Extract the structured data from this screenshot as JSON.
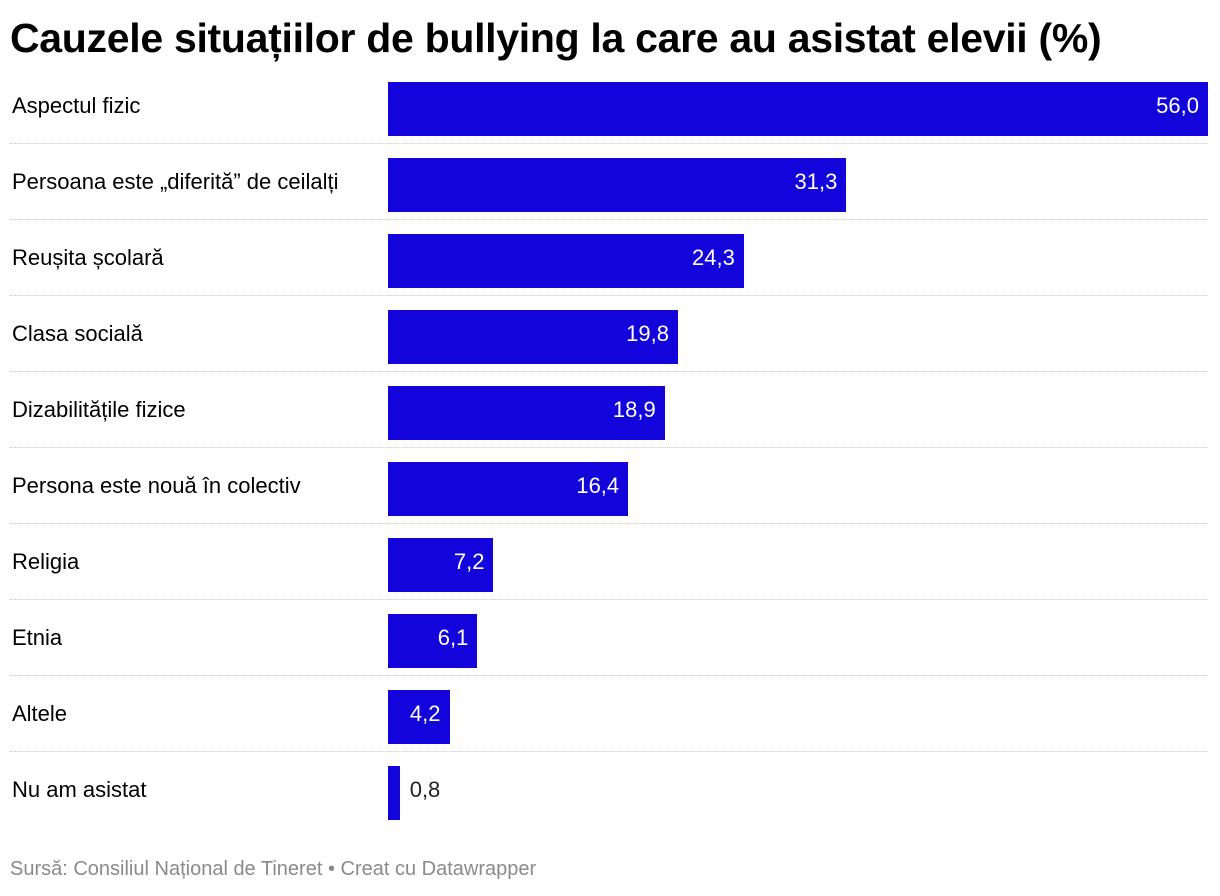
{
  "chart_data": {
    "type": "bar",
    "orientation": "horizontal",
    "title": "Cauzele situațiilor de bullying la care au asistat elevii (%)",
    "categories": [
      "Aspectul fizic",
      "Persoana este „diferită” de ceilalți",
      "Reușita școlară",
      "Clasa socială",
      "Dizabilitățile fizice",
      "Persona este nouă în colectiv",
      "Religia",
      "Etnia",
      "Altele",
      "Nu am asistat"
    ],
    "values": [
      56.0,
      31.3,
      24.3,
      19.8,
      18.9,
      16.4,
      7.2,
      6.1,
      4.2,
      0.8
    ],
    "value_labels": [
      "56,0",
      "31,3",
      "24,3",
      "19,8",
      "18,9",
      "16,4",
      "7,2",
      "6,1",
      "4,2",
      "0,8"
    ],
    "xlim": [
      0,
      56
    ],
    "bar_color": "#1204db",
    "grid": false
  },
  "footer": {
    "text": "Sursă: Consiliul Național de Tineret • Creat cu Datawrapper"
  }
}
